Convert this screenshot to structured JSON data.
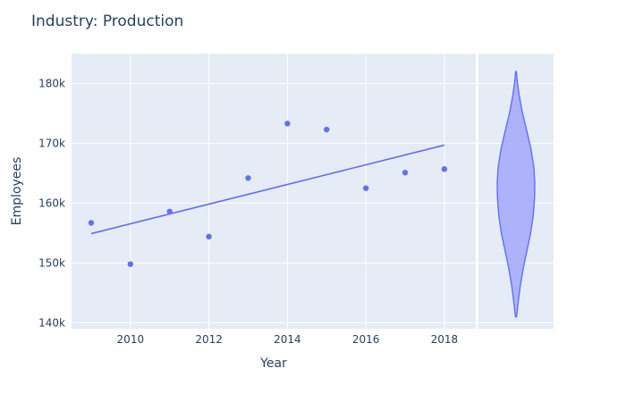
{
  "chart_data": {
    "type": "scatter",
    "title": "Industry: Production",
    "xlabel": "Year",
    "ylabel": "Employees",
    "xlim": [
      2008.5,
      2018.8
    ],
    "ylim": [
      139000,
      185000
    ],
    "x_ticks": [
      2010,
      2012,
      2014,
      2016,
      2018
    ],
    "x_tick_labels": [
      "2010",
      "2012",
      "2014",
      "2016",
      "2018"
    ],
    "y_ticks": [
      140000,
      150000,
      160000,
      170000,
      180000
    ],
    "y_tick_labels": [
      "140k",
      "150k",
      "160k",
      "170k",
      "180k"
    ],
    "grid": true,
    "colors": {
      "plot_bg": "#e5ecf6",
      "grid": "#ffffff",
      "marker": "#636efa",
      "violin_fill": "#a6acfc"
    },
    "points": [
      {
        "x": 2009,
        "y": 156700
      },
      {
        "x": 2010,
        "y": 149800
      },
      {
        "x": 2011,
        "y": 158600
      },
      {
        "x": 2012,
        "y": 154400
      },
      {
        "x": 2013,
        "y": 164200
      },
      {
        "x": 2014,
        "y": 173300
      },
      {
        "x": 2015,
        "y": 172300
      },
      {
        "x": 2016,
        "y": 162500
      },
      {
        "x": 2017,
        "y": 165100
      },
      {
        "x": 2018,
        "y": 165700
      }
    ],
    "trendline": {
      "type": "ols",
      "x": [
        2009,
        2018
      ],
      "y": [
        154900,
        169700
      ]
    },
    "violin": {
      "y_min": 141000,
      "y_max": 182000,
      "profile": [
        {
          "y": 141000,
          "d": 0.03
        },
        {
          "y": 143000,
          "d": 0.1
        },
        {
          "y": 146000,
          "d": 0.22
        },
        {
          "y": 149000,
          "d": 0.38
        },
        {
          "y": 152000,
          "d": 0.58
        },
        {
          "y": 155000,
          "d": 0.78
        },
        {
          "y": 158000,
          "d": 0.92
        },
        {
          "y": 161000,
          "d": 0.99
        },
        {
          "y": 163500,
          "d": 1.0
        },
        {
          "y": 166000,
          "d": 0.95
        },
        {
          "y": 169000,
          "d": 0.8
        },
        {
          "y": 172000,
          "d": 0.58
        },
        {
          "y": 175000,
          "d": 0.35
        },
        {
          "y": 178000,
          "d": 0.17
        },
        {
          "y": 180500,
          "d": 0.06
        },
        {
          "y": 182000,
          "d": 0.02
        }
      ]
    }
  }
}
